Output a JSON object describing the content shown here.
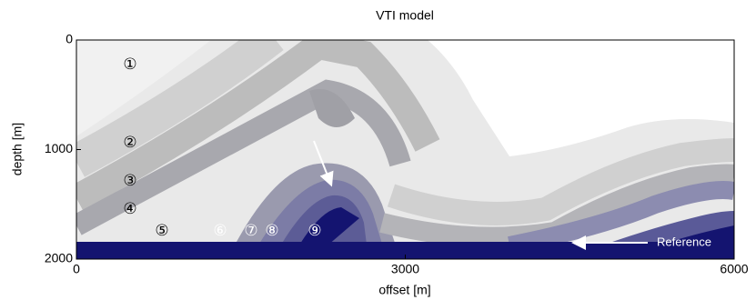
{
  "chart_data": {
    "type": "model",
    "title": "VTI model",
    "xlabel": "offset [m]",
    "ylabel": "depth [m]",
    "xlim": [
      0,
      6000
    ],
    "ylim": [
      0,
      2000
    ],
    "y_inverted": true,
    "xticks": [
      0,
      3000,
      6000
    ],
    "yticks": [
      0,
      1000,
      2000
    ],
    "layer_labels": [
      "①",
      "②",
      "③",
      "④",
      "⑤",
      "⑥",
      "⑦",
      "⑧",
      "⑨"
    ],
    "annotation": "Reference"
  }
}
